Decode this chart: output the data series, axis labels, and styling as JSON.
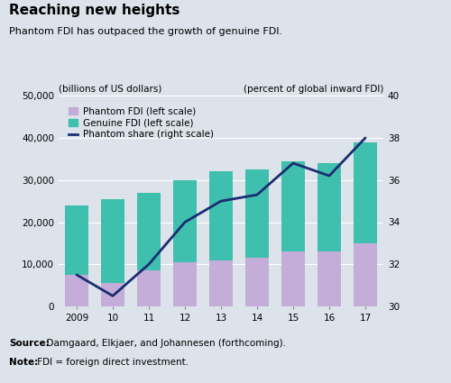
{
  "years": [
    "2009",
    "10",
    "11",
    "12",
    "13",
    "14",
    "15",
    "16",
    "17"
  ],
  "phantom_fdi": [
    7500,
    5500,
    8500,
    10500,
    11000,
    11500,
    13000,
    13000,
    15000
  ],
  "genuine_fdi": [
    16500,
    20000,
    18500,
    19500,
    21000,
    21000,
    21500,
    21000,
    24000
  ],
  "phantom_share": [
    31.5,
    30.5,
    32.0,
    34.0,
    35.0,
    35.3,
    36.8,
    36.2,
    38.0
  ],
  "phantom_color": "#c4add8",
  "genuine_color": "#3fbfad",
  "line_color": "#1a2d72",
  "fig_bg_color": "#dde3ea",
  "plot_bg_color": "#dde3ea",
  "title": "Reaching new heights",
  "subtitle": "Phantom FDI has outpaced the growth of genuine FDI.",
  "ylabel_left": "(billions of US dollars)",
  "ylabel_right": "(percent of global inward FDI)",
  "ylim_left": [
    0,
    50000
  ],
  "ylim_right": [
    30,
    40
  ],
  "yticks_left": [
    0,
    10000,
    20000,
    30000,
    40000,
    50000
  ],
  "ytick_labels_left": [
    "0",
    "10,000",
    "20,000",
    "30,000",
    "40,000",
    "50,000"
  ],
  "yticks_right": [
    30,
    32,
    34,
    36,
    38,
    40
  ],
  "source_text_bold": "Source:",
  "source_text_normal": "  Damgaard, Elkjaer, and Johannesen (forthcoming).",
  "note_text_bold": "Note:",
  "note_text_normal": " FDI = foreign direct investment.",
  "legend_labels": [
    "Phantom FDI (left scale)",
    "Genuine FDI (left scale)",
    "Phantom share (right scale)"
  ]
}
